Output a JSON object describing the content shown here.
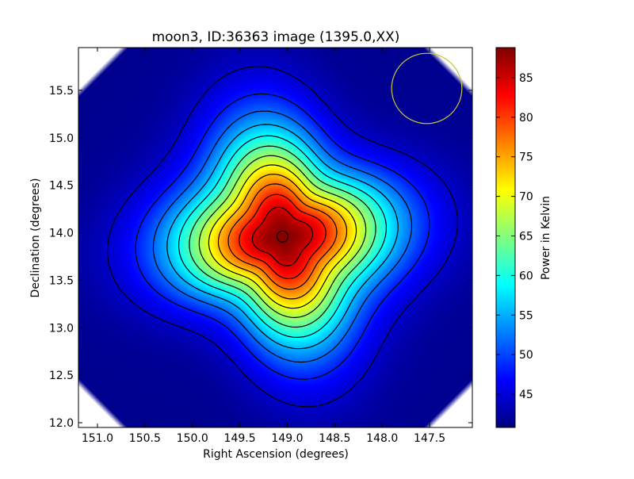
{
  "chart_data": {
    "type": "heatmap",
    "title": "moon3, ID:36363 image (1395.0,XX)",
    "xlabel": "Right Ascension (degrees)",
    "ylabel": "Declination (degrees)",
    "xlim": [
      151.2,
      147.05
    ],
    "ylim": [
      11.95,
      15.95
    ],
    "x_inverted": true,
    "x_ticks": [
      "151.0",
      "150.5",
      "150.0",
      "149.5",
      "149.0",
      "148.5",
      "148.0",
      "147.5"
    ],
    "y_ticks": [
      "12.0",
      "12.5",
      "13.0",
      "13.5",
      "14.0",
      "14.5",
      "15.0",
      "15.5"
    ],
    "colormap": "jet",
    "colorbar": {
      "label": "Power in Kelvin",
      "range": [
        40.8,
        88.8
      ],
      "ticks": [
        "45",
        "50",
        "55",
        "60",
        "65",
        "70",
        "75",
        "80",
        "85"
      ]
    },
    "source": {
      "ra": 149.05,
      "dec": 13.96,
      "peak_k": 88.5,
      "background_k": 41.5,
      "contour_count": 12
    },
    "beam_circle": {
      "ra": 147.53,
      "dec": 15.52,
      "radius_deg": 0.37,
      "color": "#c8c832"
    },
    "grid": false
  }
}
